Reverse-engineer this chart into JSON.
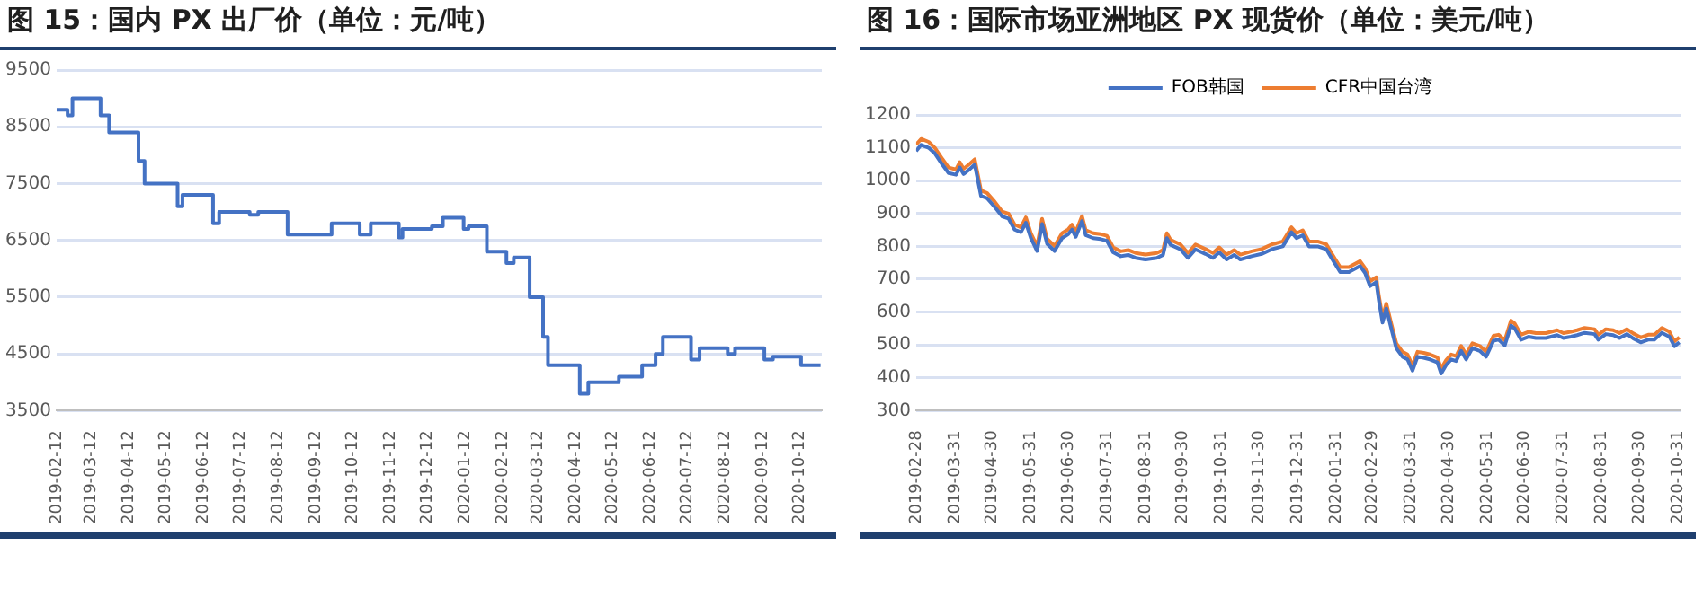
{
  "chart_data": [
    {
      "type": "step",
      "title": "图 15：国内 PX 出厂价（单位：元/吨）",
      "color": "#4472c4",
      "grid": "y",
      "x": [
        "2019-02-12",
        "2019-02-21",
        "2019-02-25",
        "2019-03-20",
        "2019-03-27",
        "2019-04-20",
        "2019-04-25",
        "2019-05-22",
        "2019-05-26",
        "2019-06-20",
        "2019-06-25",
        "2019-07-20",
        "2019-07-27",
        "2019-08-20",
        "2019-09-25",
        "2019-10-18",
        "2019-10-27",
        "2019-11-19",
        "2019-11-22",
        "2019-12-16",
        "2019-12-25",
        "2020-01-11",
        "2020-01-15",
        "2020-01-30",
        "2020-02-15",
        "2020-02-21",
        "2020-03-05",
        "2020-03-16",
        "2020-03-20",
        "2020-04-15",
        "2020-04-22",
        "2020-05-17",
        "2020-06-05",
        "2020-06-16",
        "2020-06-22",
        "2020-07-15",
        "2020-07-22",
        "2020-08-14",
        "2020-08-20",
        "2020-09-13",
        "2020-09-20",
        "2020-10-13",
        "2020-10-29"
      ],
      "values": [
        8800,
        8700,
        9000,
        8700,
        8400,
        7900,
        7500,
        7100,
        7300,
        6800,
        7000,
        6950,
        7000,
        6600,
        6800,
        6600,
        6800,
        6550,
        6700,
        6750,
        6900,
        6700,
        6750,
        6300,
        6100,
        6200,
        5500,
        4800,
        4300,
        3800,
        4000,
        4100,
        4300,
        4500,
        4800,
        4400,
        4600,
        4500,
        4600,
        4400,
        4450,
        4300,
        4300
      ],
      "xlim": [
        "2019-02-12",
        "2020-10-30"
      ],
      "xticks": [
        "2019-02-12",
        "2019-03-12",
        "2019-04-12",
        "2019-05-12",
        "2019-06-12",
        "2019-07-12",
        "2019-08-12",
        "2019-09-12",
        "2019-10-12",
        "2019-11-12",
        "2019-12-12",
        "2020-01-12",
        "2020-02-12",
        "2020-03-12",
        "2020-04-12",
        "2020-05-12",
        "2020-06-12",
        "2020-07-12",
        "2020-08-12",
        "2020-09-12",
        "2020-10-12"
      ],
      "ylim": [
        3500,
        9500
      ],
      "yticks": [
        3500,
        4500,
        5500,
        6500,
        7500,
        8500,
        9500
      ]
    },
    {
      "type": "line",
      "title": "图 16：国际市场亚洲地区 PX 现货价（单位：美元/吨）",
      "grid": "y",
      "legend": "top",
      "x": [
        "2019-02-28",
        "2019-03-04",
        "2019-03-10",
        "2019-03-15",
        "2019-03-21",
        "2019-03-26",
        "2019-04-01",
        "2019-04-04",
        "2019-04-07",
        "2019-04-12",
        "2019-04-16",
        "2019-04-21",
        "2019-04-26",
        "2019-05-02",
        "2019-05-08",
        "2019-05-13",
        "2019-05-18",
        "2019-05-23",
        "2019-05-27",
        "2019-05-31",
        "2019-06-05",
        "2019-06-09",
        "2019-06-13",
        "2019-06-19",
        "2019-06-25",
        "2019-06-30",
        "2019-07-03",
        "2019-07-06",
        "2019-07-11",
        "2019-07-14",
        "2019-07-20",
        "2019-07-26",
        "2019-07-31",
        "2019-08-05",
        "2019-08-11",
        "2019-08-17",
        "2019-08-23",
        "2019-08-31",
        "2019-09-09",
        "2019-09-14",
        "2019-09-17",
        "2019-09-20",
        "2019-09-28",
        "2019-10-04",
        "2019-10-10",
        "2019-10-18",
        "2019-10-24",
        "2019-10-29",
        "2019-11-04",
        "2019-11-10",
        "2019-11-15",
        "2019-11-24",
        "2019-12-02",
        "2019-12-10",
        "2019-12-19",
        "2019-12-26",
        "2019-12-30",
        "2020-01-04",
        "2020-01-09",
        "2020-01-16",
        "2020-01-23",
        "2020-01-27",
        "2020-02-03",
        "2020-02-10",
        "2020-02-19",
        "2020-02-23",
        "2020-02-27",
        "2020-03-03",
        "2020-03-05",
        "2020-03-08",
        "2020-03-11",
        "2020-03-15",
        "2020-03-19",
        "2020-03-24",
        "2020-03-28",
        "2020-04-01",
        "2020-04-05",
        "2020-04-10",
        "2020-04-15",
        "2020-04-21",
        "2020-04-24",
        "2020-04-28",
        "2020-05-02",
        "2020-05-06",
        "2020-05-10",
        "2020-05-14",
        "2020-05-19",
        "2020-05-25",
        "2020-05-30",
        "2020-06-05",
        "2020-06-09",
        "2020-06-14",
        "2020-06-19",
        "2020-06-22",
        "2020-06-27",
        "2020-07-03",
        "2020-07-09",
        "2020-07-17",
        "2020-07-26",
        "2020-07-31",
        "2020-08-06",
        "2020-08-11",
        "2020-08-17",
        "2020-08-25",
        "2020-08-28",
        "2020-09-03",
        "2020-09-09",
        "2020-09-14",
        "2020-09-20",
        "2020-09-25",
        "2020-10-01",
        "2020-10-07",
        "2020-10-12",
        "2020-10-18",
        "2020-10-24",
        "2020-10-28",
        "2020-11-01"
      ],
      "series": [
        {
          "name": "FOB韩国",
          "color": "#4472c4",
          "values": [
            1090,
            1109,
            1100,
            1083,
            1049,
            1023,
            1018,
            1040,
            1020,
            1035,
            1049,
            954,
            946,
            920,
            891,
            885,
            851,
            843,
            872,
            825,
            786,
            868,
            808,
            786,
            825,
            837,
            851,
            829,
            877,
            834,
            825,
            822,
            817,
            782,
            770,
            774,
            765,
            760,
            765,
            774,
            825,
            805,
            791,
            765,
            791,
            777,
            765,
            782,
            760,
            774,
            760,
            770,
            777,
            791,
            800,
            843,
            825,
            834,
            800,
            800,
            791,
            765,
            722,
            722,
            740,
            719,
            679,
            691,
            636,
            568,
            611,
            550,
            490,
            464,
            456,
            422,
            464,
            461,
            456,
            447,
            413,
            439,
            456,
            451,
            482,
            456,
            490,
            482,
            464,
            513,
            516,
            499,
            559,
            550,
            516,
            525,
            521,
            521,
            530,
            521,
            525,
            530,
            537,
            533,
            516,
            533,
            530,
            521,
            533,
            520,
            508,
            516,
            516,
            537,
            525,
            496,
            508
          ]
        },
        {
          "name": "CFR中国台湾",
          "color": "#ed7d31",
          "values": [
            1110,
            1127,
            1118,
            1100,
            1066,
            1040,
            1034,
            1056,
            1036,
            1051,
            1065,
            970,
            962,
            936,
            906,
            900,
            866,
            858,
            888,
            840,
            801,
            884,
            823,
            801,
            840,
            852,
            866,
            844,
            892,
            849,
            840,
            837,
            832,
            797,
            785,
            789,
            780,
            775,
            780,
            789,
            840,
            820,
            806,
            780,
            806,
            792,
            780,
            797,
            775,
            789,
            775,
            785,
            792,
            806,
            815,
            858,
            840,
            849,
            815,
            815,
            806,
            780,
            737,
            737,
            755,
            734,
            694,
            706,
            651,
            583,
            626,
            565,
            505,
            479,
            471,
            437,
            479,
            476,
            471,
            462,
            428,
            454,
            471,
            466,
            497,
            471,
            505,
            497,
            479,
            528,
            531,
            514,
            574,
            565,
            531,
            540,
            536,
            536,
            545,
            536,
            540,
            545,
            552,
            548,
            531,
            548,
            545,
            536,
            548,
            535,
            523,
            531,
            531,
            552,
            540,
            511,
            523
          ]
        }
      ],
      "xlim": [
        "2019-02-28",
        "2020-11-02"
      ],
      "xticks": [
        "2019-02-28",
        "2019-03-31",
        "2019-04-30",
        "2019-05-31",
        "2019-06-30",
        "2019-07-31",
        "2019-08-31",
        "2019-09-30",
        "2019-10-31",
        "2019-11-30",
        "2019-12-31",
        "2020-01-31",
        "2020-02-29",
        "2020-03-31",
        "2020-04-30",
        "2020-05-31",
        "2020-06-30",
        "2020-07-31",
        "2020-08-31",
        "2020-09-30",
        "2020-10-31"
      ],
      "ylim": [
        300,
        1200
      ],
      "yticks": [
        300,
        400,
        500,
        600,
        700,
        800,
        900,
        1000,
        1100,
        1200
      ]
    }
  ]
}
